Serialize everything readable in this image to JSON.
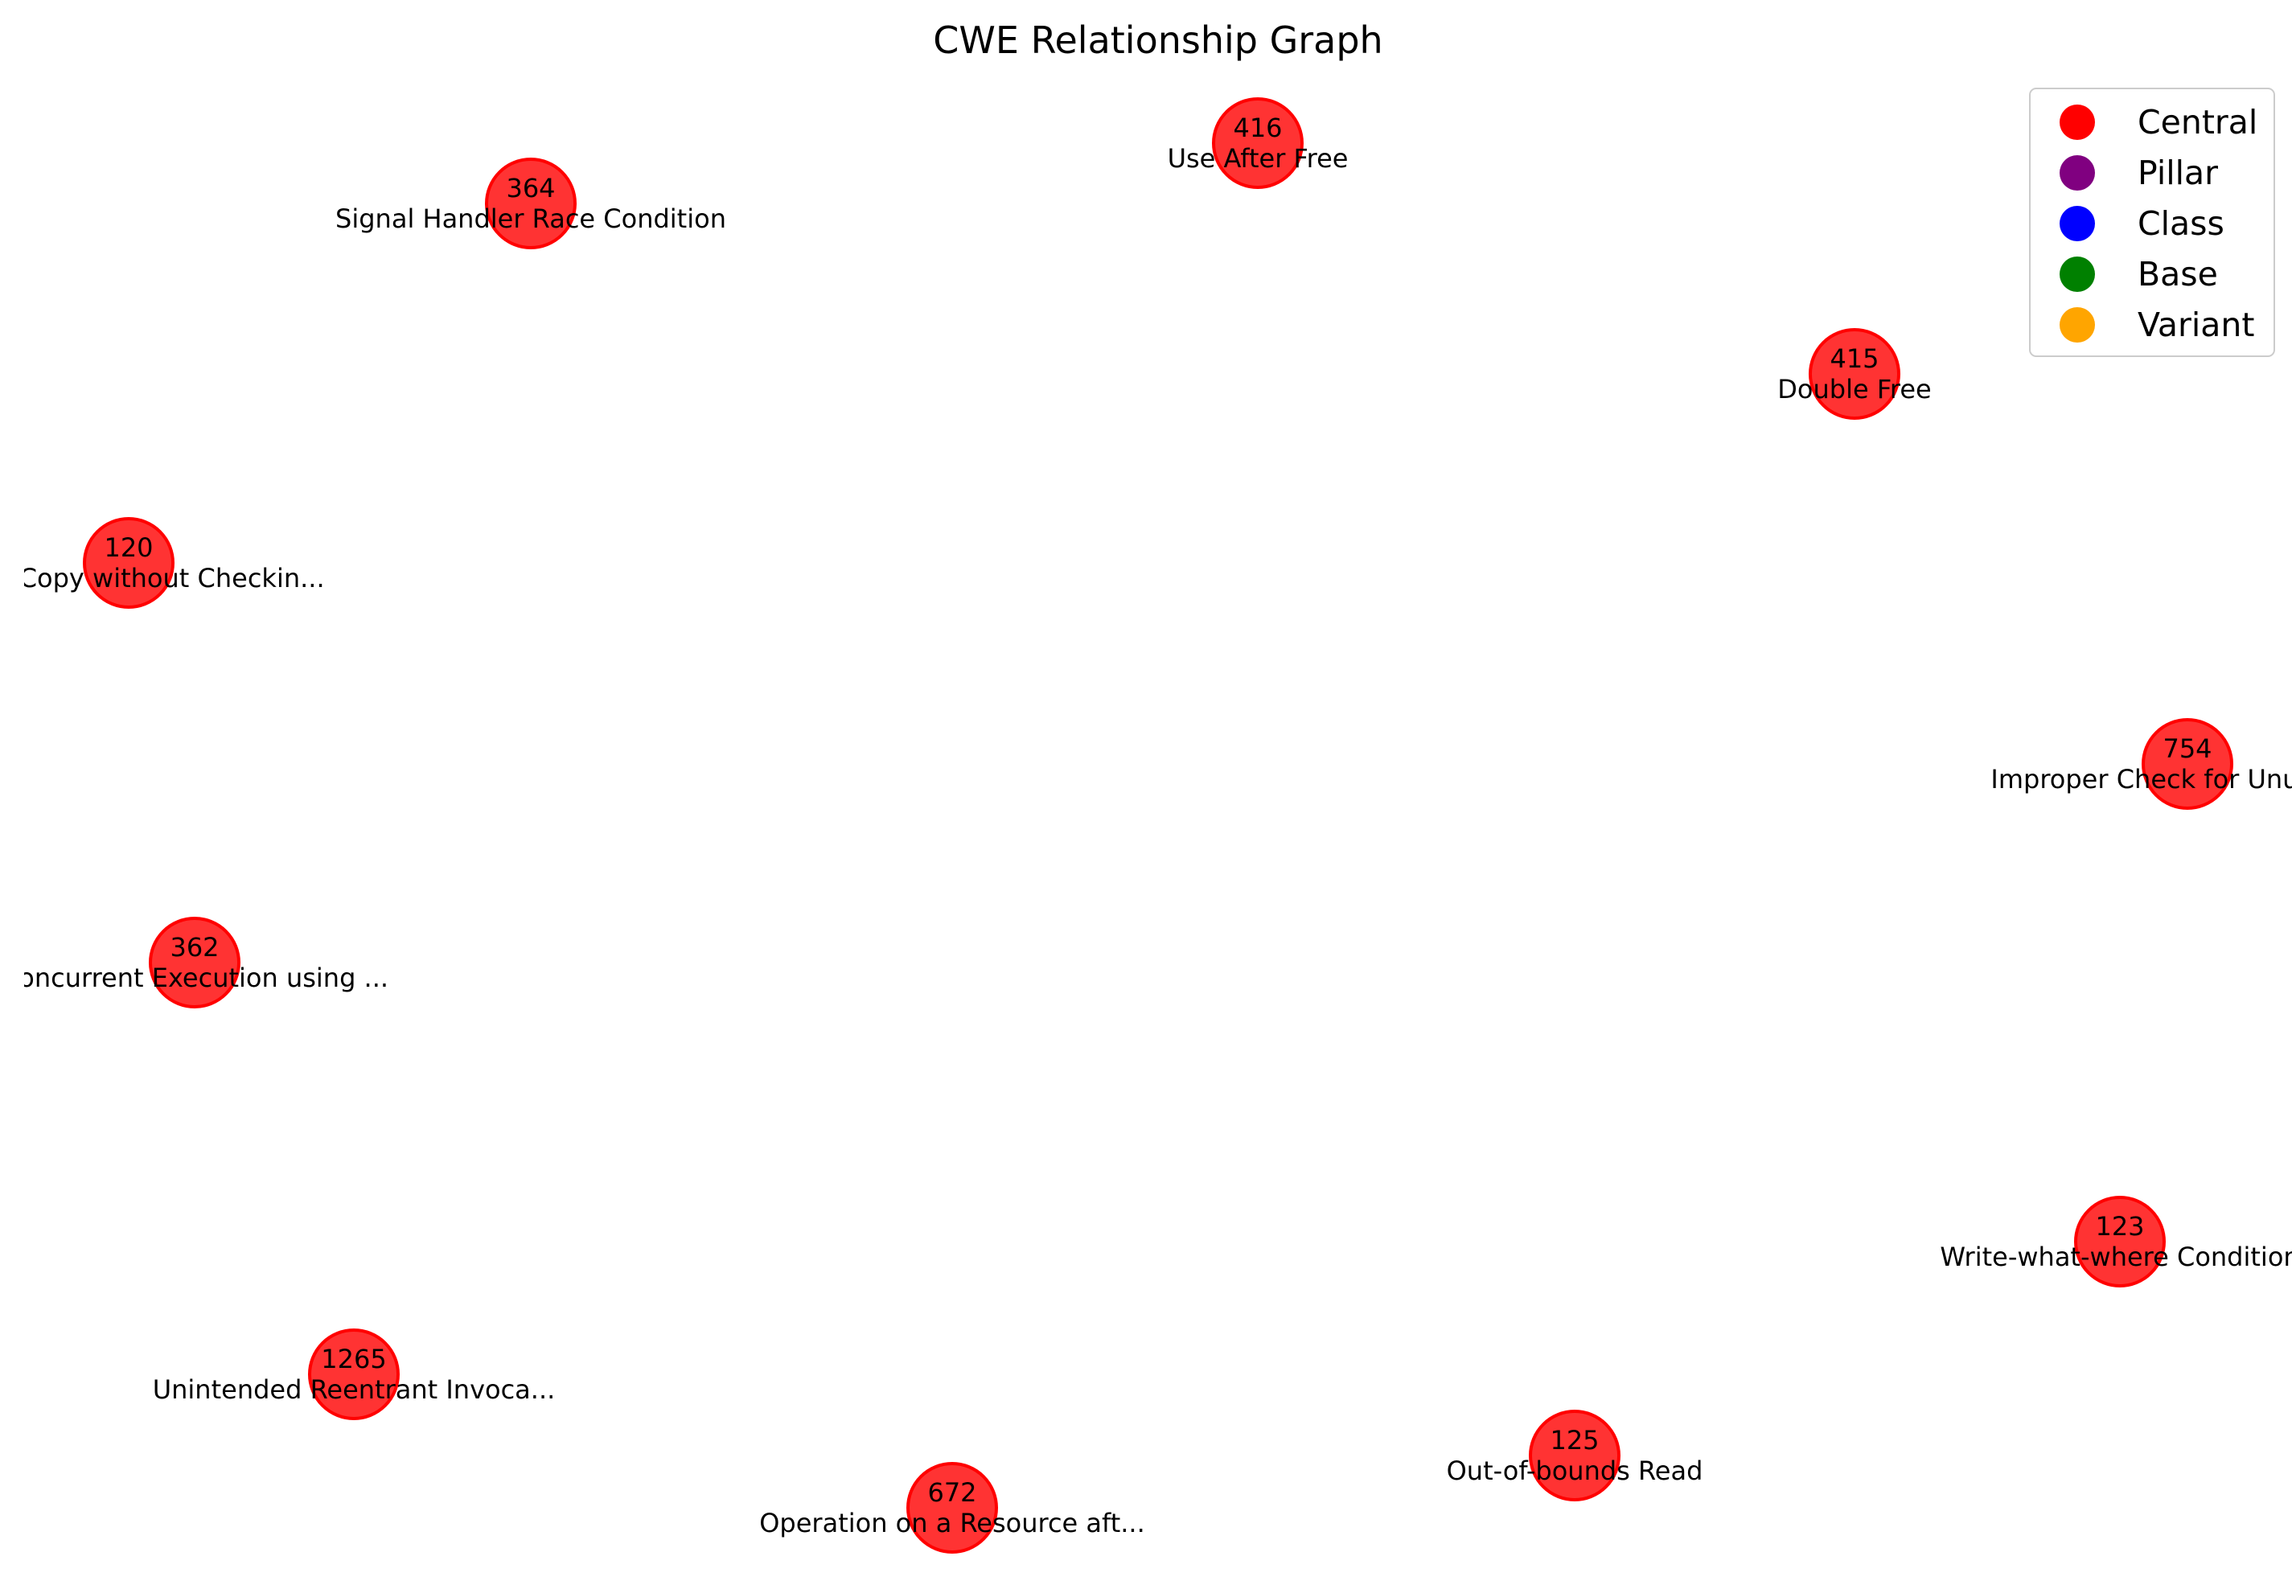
{
  "title": "CWE Relationship Graph",
  "node_color": "#ff0000",
  "nodes": [
    {
      "id": "416",
      "label": "Use After Free"
    },
    {
      "id": "364",
      "label": "Signal Handler Race Condition"
    },
    {
      "id": "415",
      "label": "Double Free"
    },
    {
      "id": "120",
      "label": "Buffer Copy without Checkin..."
    },
    {
      "id": "754",
      "label": "Improper Check for Unusual ..."
    },
    {
      "id": "362",
      "label": "Concurrent Execution using ..."
    },
    {
      "id": "123",
      "label": "Write-what-where Condition"
    },
    {
      "id": "1265",
      "label": "Unintended Reentrant Invoca..."
    },
    {
      "id": "125",
      "label": "Out-of-bounds Read"
    },
    {
      "id": "672",
      "label": "Operation on a Resource aft..."
    }
  ],
  "legend": {
    "placement": "top-right",
    "items": [
      {
        "label": "Central",
        "color": "#ff0000"
      },
      {
        "label": "Pillar",
        "color": "#800080"
      },
      {
        "label": "Class",
        "color": "#0000ff"
      },
      {
        "label": "Base",
        "color": "#008000"
      },
      {
        "label": "Variant",
        "color": "#ffa500"
      }
    ]
  }
}
